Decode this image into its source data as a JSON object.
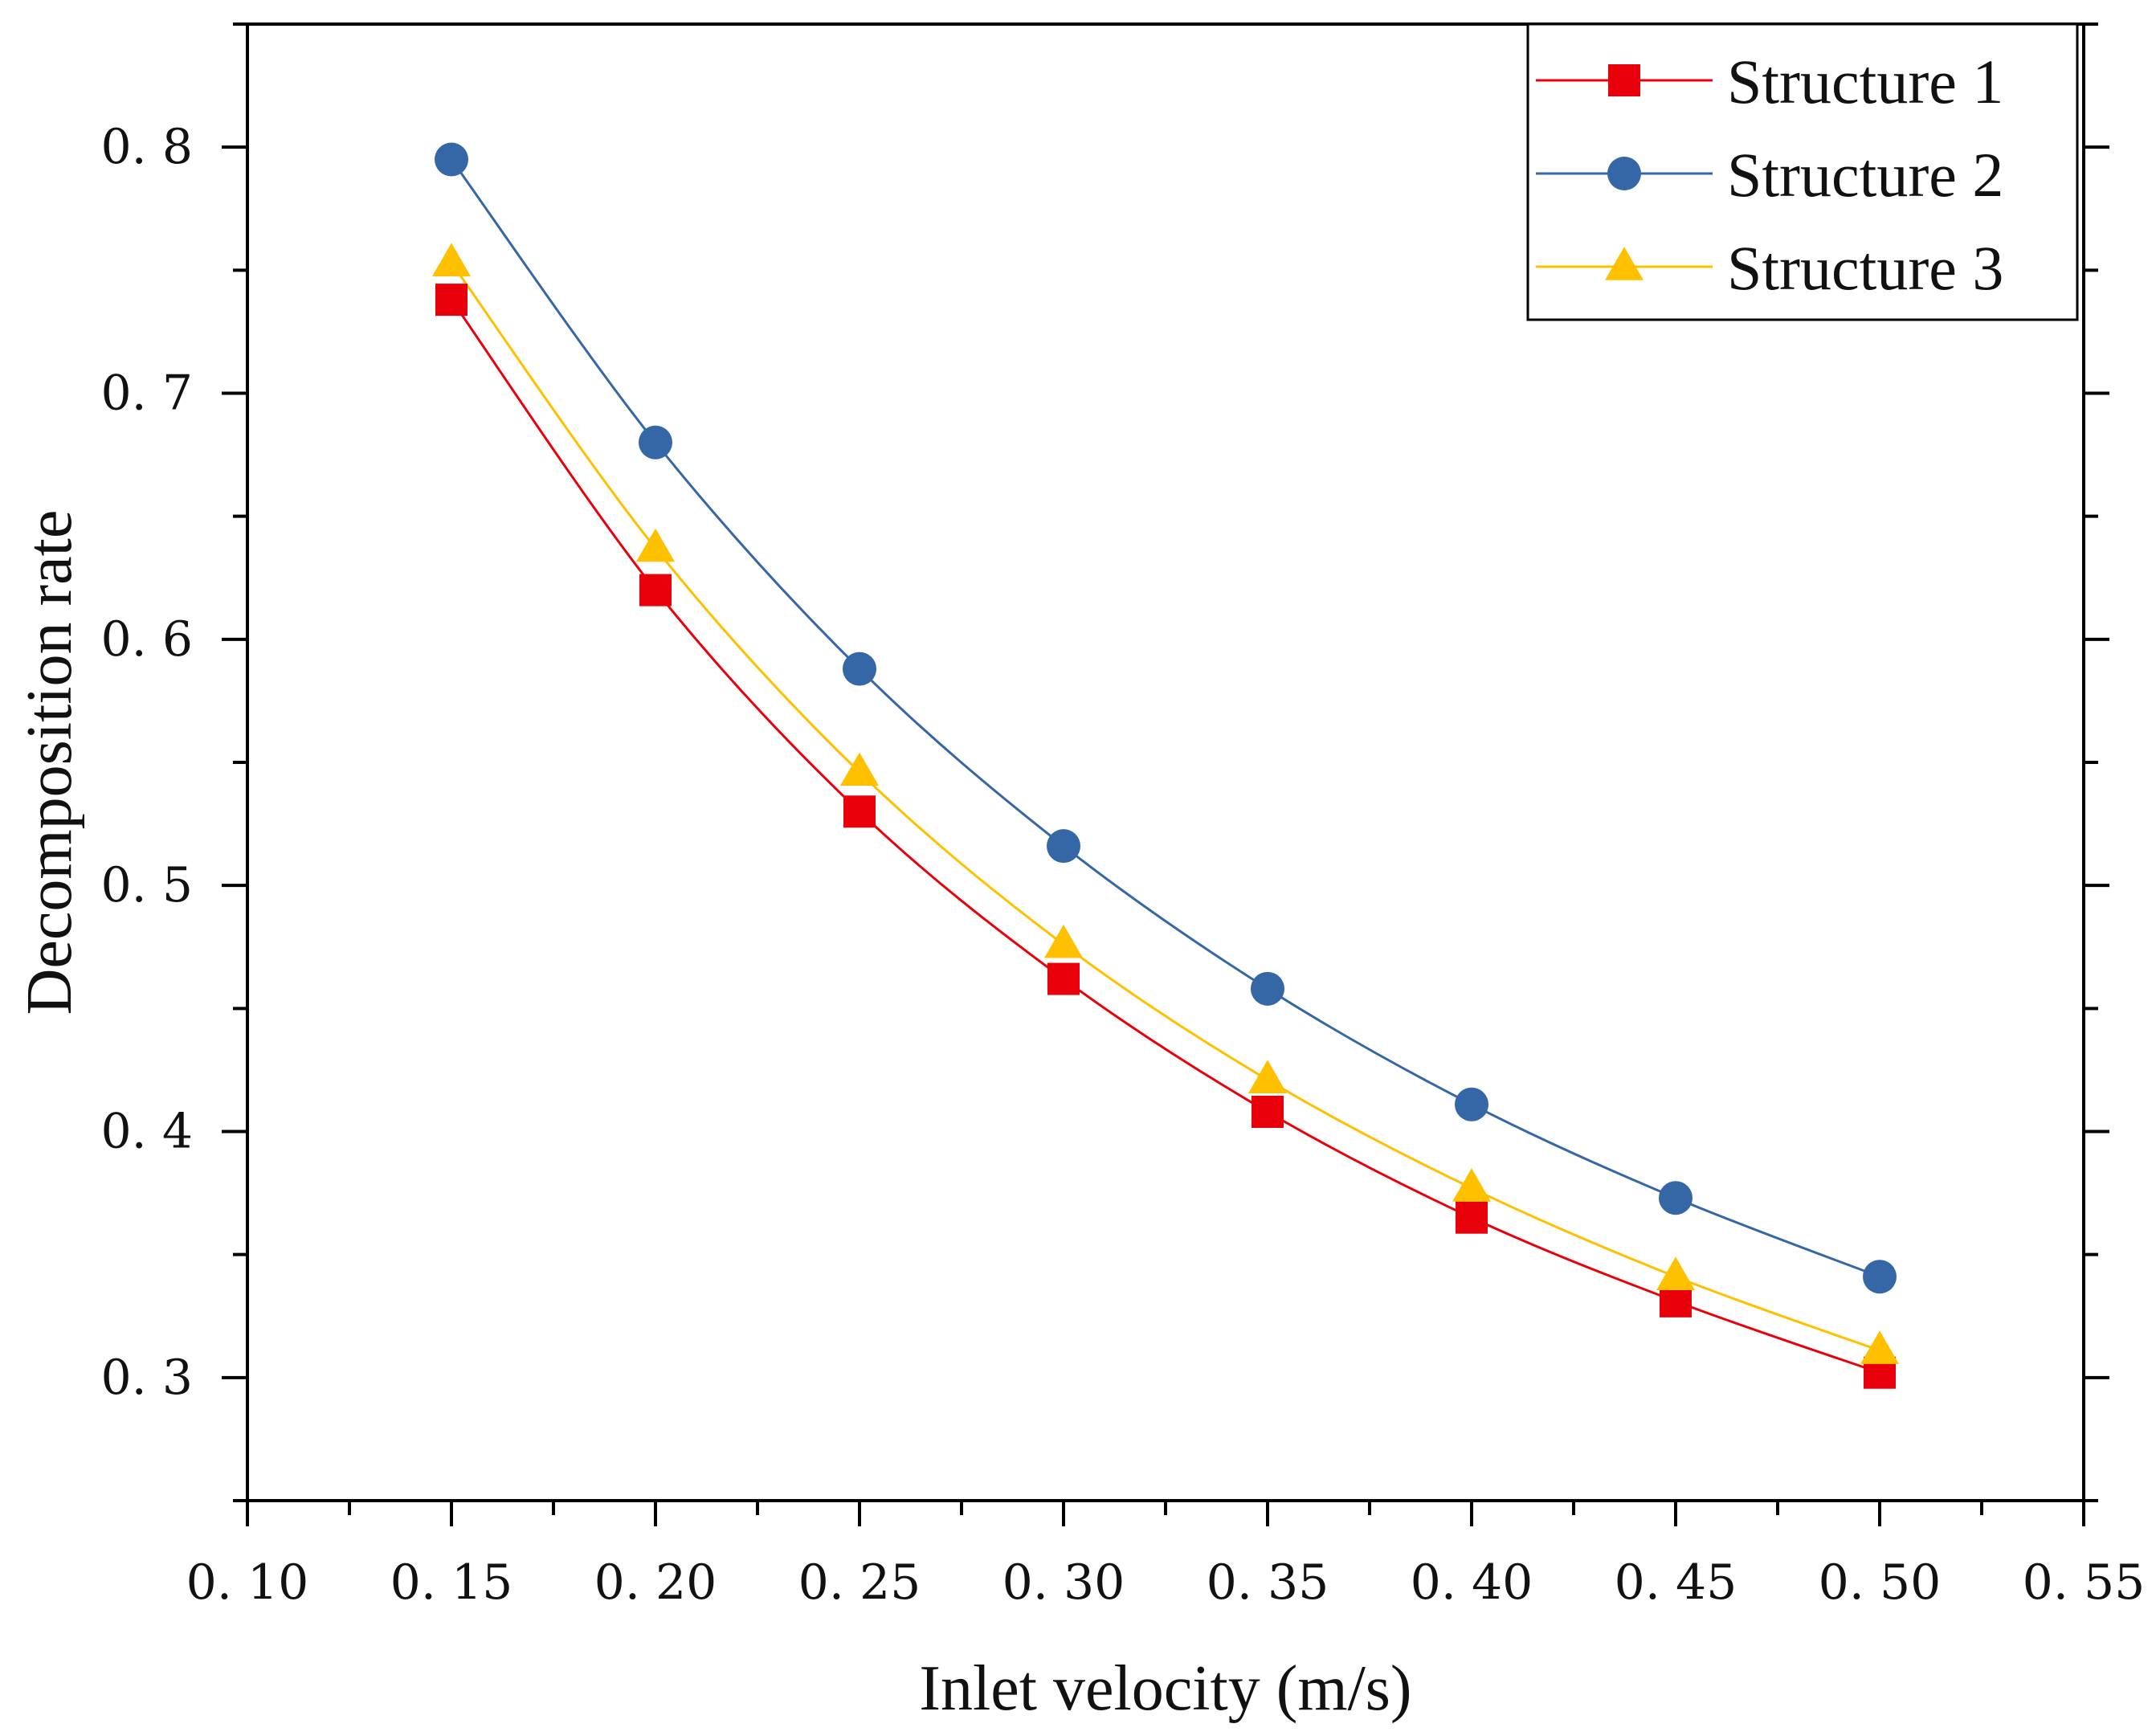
{
  "chart_data": {
    "type": "line",
    "xlabel": "Inlet velocity (m/s)",
    "ylabel": "Decomposition rate",
    "xlim": [
      0.1,
      0.55
    ],
    "ylim": [
      0.25,
      0.85
    ],
    "x_ticks": [
      0.1,
      0.15,
      0.2,
      0.25,
      0.3,
      0.35,
      0.4,
      0.45,
      0.5,
      0.55
    ],
    "x_tick_labels": [
      "0. 10",
      "0. 15",
      "0. 20",
      "0. 25",
      "0. 30",
      "0. 35",
      "0. 40",
      "0. 45",
      "0. 50",
      "0. 55"
    ],
    "y_ticks": [
      0.3,
      0.4,
      0.5,
      0.6,
      0.7,
      0.8
    ],
    "y_tick_labels": [
      "0. 3",
      "0. 4",
      "0. 5",
      "0. 6",
      "0. 7",
      "0. 8"
    ],
    "grid": false,
    "legend_position": "top-right",
    "x": [
      0.15,
      0.2,
      0.25,
      0.3,
      0.35,
      0.4,
      0.45,
      0.5
    ],
    "series": [
      {
        "name": "Structure 1",
        "color": "#e8000b",
        "marker": "square",
        "values": [
          0.738,
          0.62,
          0.53,
          0.462,
          0.408,
          0.365,
          0.331,
          0.302
        ]
      },
      {
        "name": "Structure 2",
        "color": "#3566a5",
        "marker": "circle",
        "values": [
          0.795,
          0.68,
          0.588,
          0.516,
          0.458,
          0.411,
          0.373,
          0.341
        ]
      },
      {
        "name": "Structure 3",
        "color": "#ffc000",
        "marker": "triangle",
        "values": [
          0.753,
          0.637,
          0.546,
          0.476,
          0.421,
          0.377,
          0.341,
          0.311
        ]
      }
    ]
  }
}
